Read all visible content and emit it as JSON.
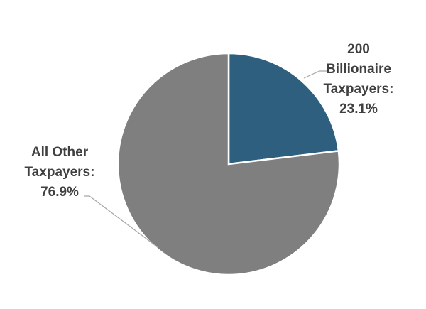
{
  "chart_data": {
    "type": "pie",
    "title": "",
    "slices": [
      {
        "label": "200 Billionaire Taxpayers",
        "value": 23.1,
        "color": "#2E5F7F"
      },
      {
        "label": "All Other Taxpayers",
        "value": 76.9,
        "color": "#7F7F7F"
      }
    ],
    "start_angle_deg": 0,
    "direction": "clockwise",
    "legend": "none",
    "data_labels": true
  },
  "labels": {
    "billionaire": {
      "line1": "200",
      "line2": "Billionaire",
      "line3": "Taxpayers:",
      "line4": "23.1%"
    },
    "others": {
      "line1": "All Other",
      "line2": "Taxpayers:",
      "line3": "76.9%"
    }
  }
}
